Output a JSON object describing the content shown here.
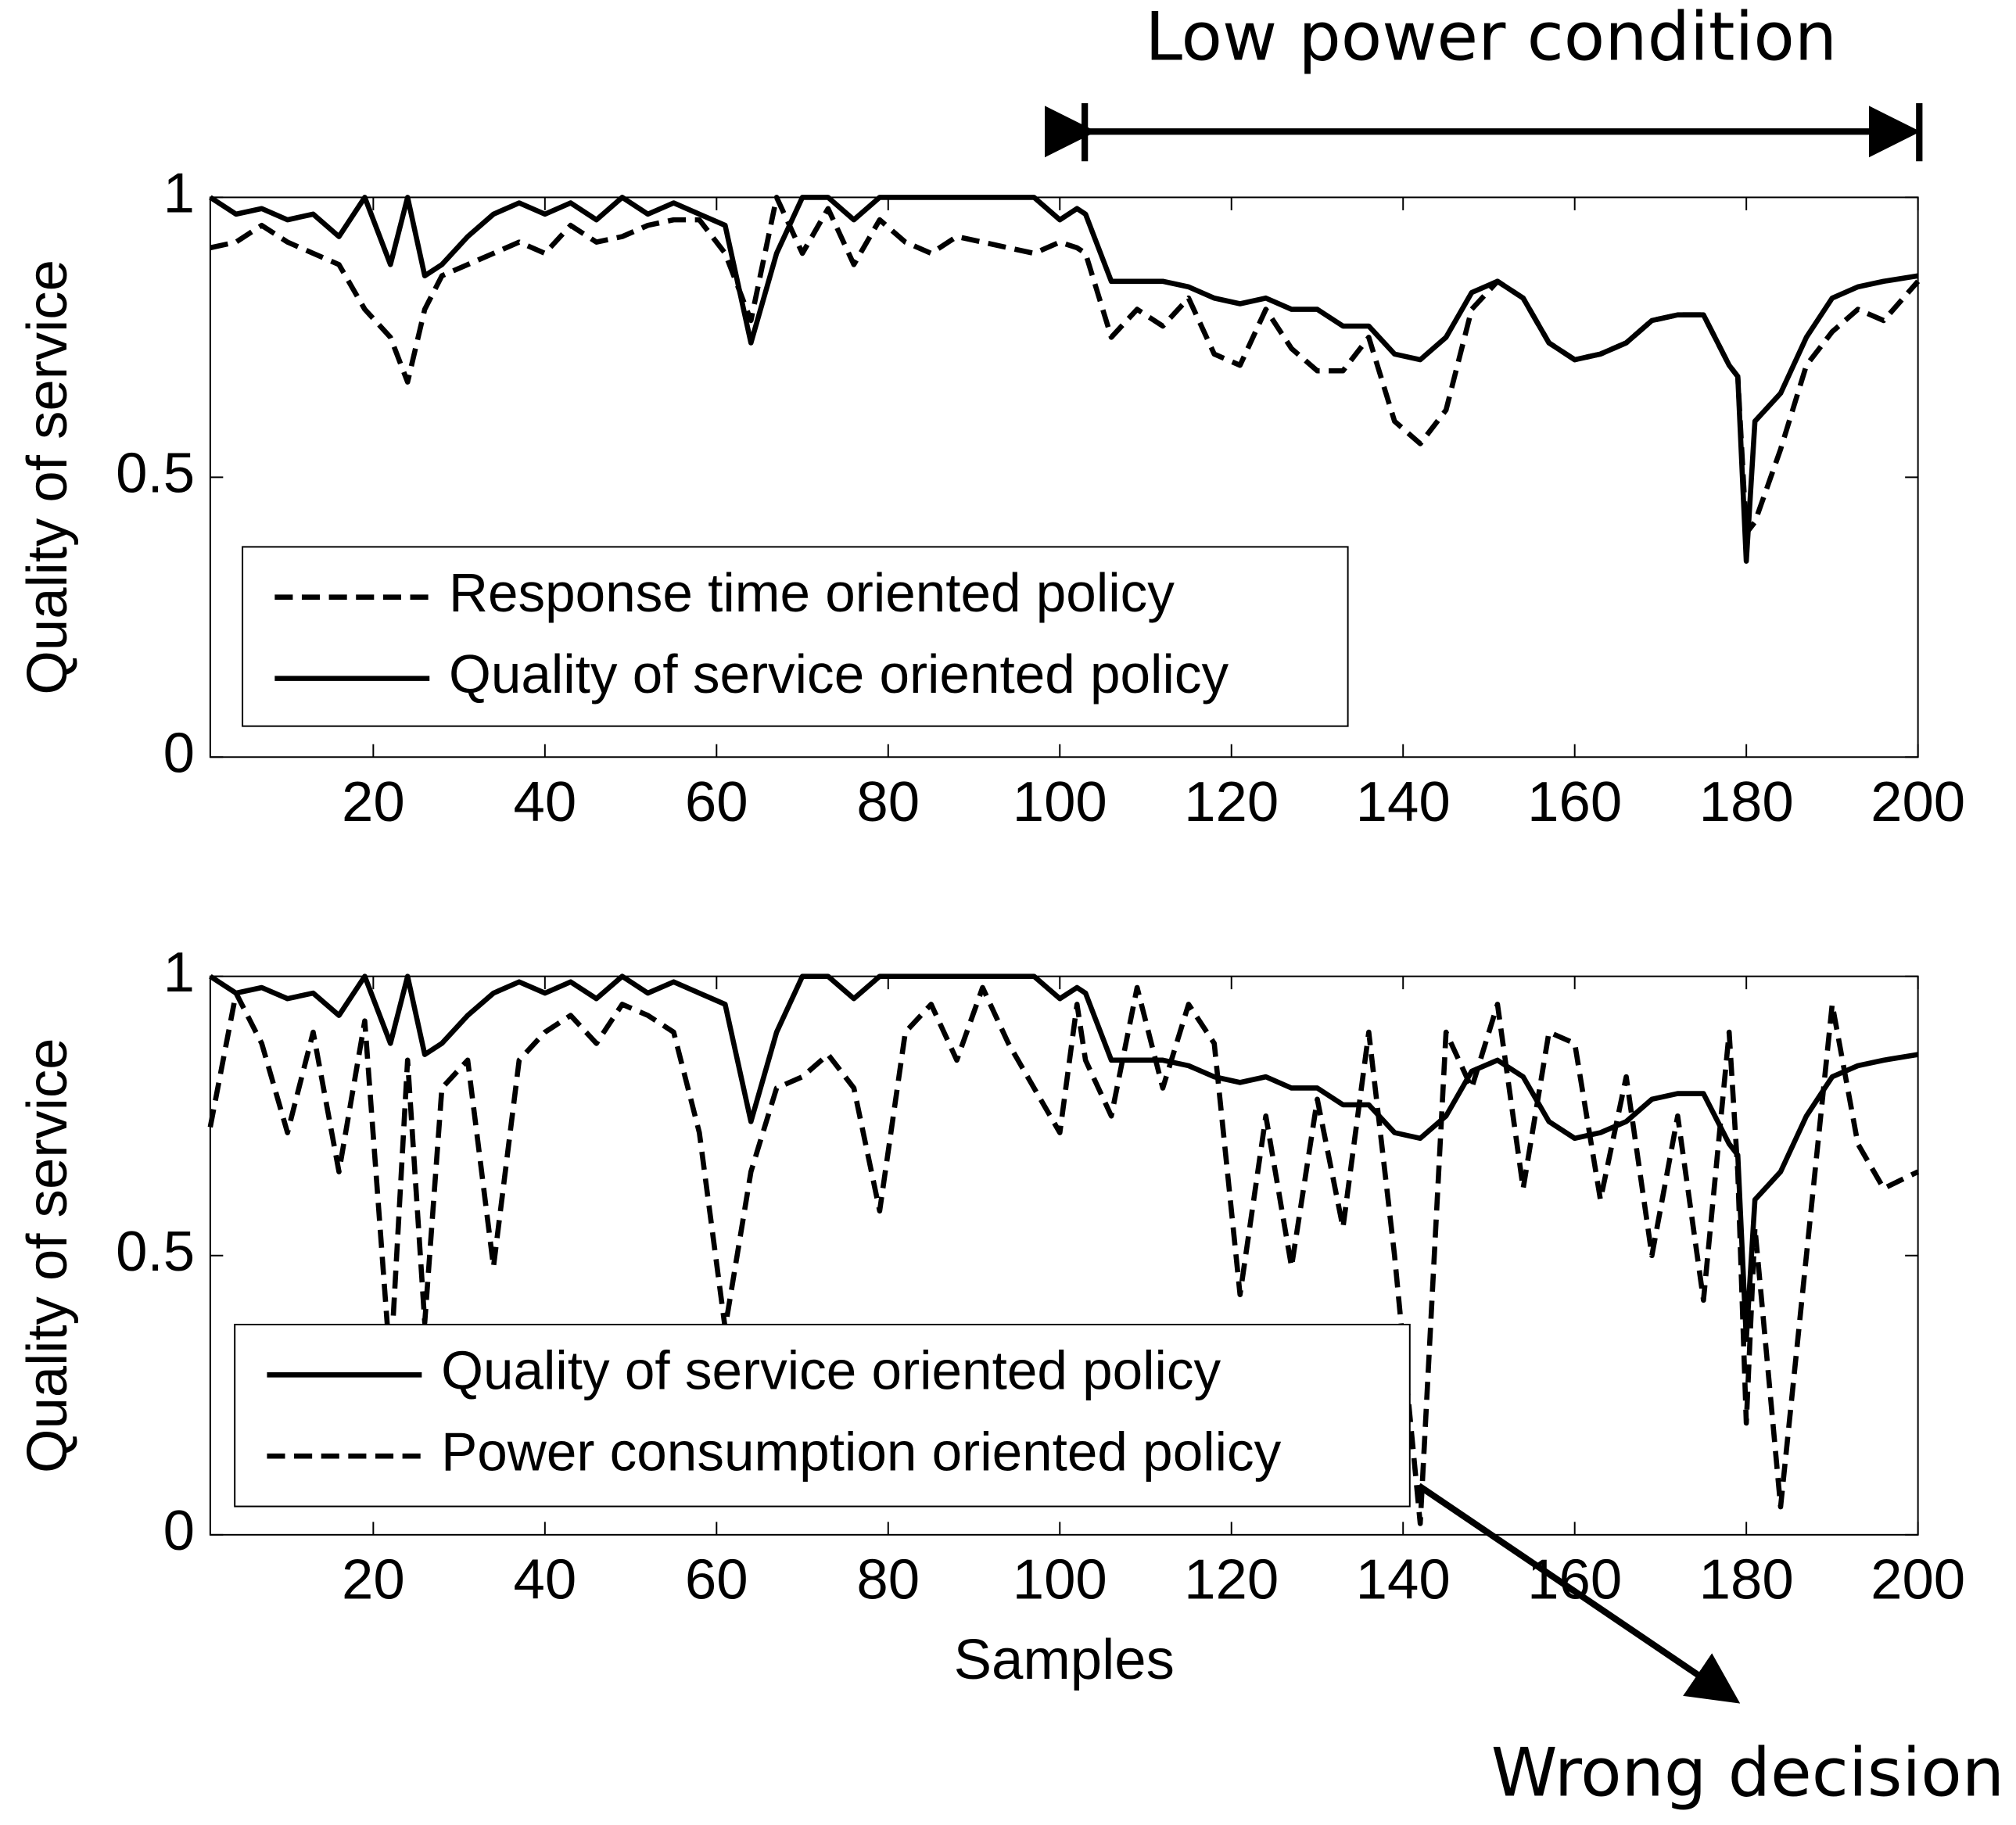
{
  "chart_data": [
    {
      "type": "line",
      "ylabel": "Quality of service",
      "annotation": "Low power condition",
      "x": [
        1,
        4,
        7,
        10,
        13,
        16,
        19,
        22,
        24,
        26,
        28,
        31,
        34,
        37,
        40,
        43,
        46,
        49,
        52,
        55,
        58,
        61,
        64,
        67,
        70,
        73,
        76,
        79,
        82,
        85,
        88,
        91,
        94,
        97,
        100,
        102,
        103,
        106,
        109,
        112,
        115,
        118,
        121,
        124,
        127,
        130,
        133,
        136,
        139,
        142,
        145,
        148,
        151,
        154,
        157,
        160,
        163,
        166,
        169,
        172,
        175,
        178,
        179,
        180,
        181,
        184,
        187,
        190,
        193,
        196,
        200
      ],
      "series": [
        {
          "name": "Response time oriented policy",
          "color": "#000000",
          "linestyle": "dashed",
          "values": [
            0.91,
            0.92,
            0.95,
            0.92,
            0.9,
            0.88,
            0.8,
            0.75,
            0.67,
            0.8,
            0.86,
            0.88,
            0.9,
            0.92,
            0.9,
            0.95,
            0.92,
            0.93,
            0.95,
            0.96,
            0.96,
            0.9,
            0.78,
            1.0,
            0.9,
            0.98,
            0.88,
            0.96,
            0.92,
            0.9,
            0.93,
            0.92,
            0.91,
            0.9,
            0.92,
            0.91,
            0.9,
            0.75,
            0.8,
            0.77,
            0.82,
            0.72,
            0.7,
            0.8,
            0.73,
            0.69,
            0.69,
            0.75,
            0.6,
            0.56,
            0.62,
            0.8,
            0.85,
            0.82,
            0.74,
            0.71,
            0.72,
            0.74,
            0.78,
            0.79,
            0.79,
            0.7,
            0.68,
            0.4,
            0.42,
            0.55,
            0.7,
            0.76,
            0.8,
            0.78,
            0.85
          ]
        },
        {
          "name": "Quality of service oriented policy",
          "color": "#000000",
          "linestyle": "solid",
          "values": [
            1.0,
            0.97,
            0.98,
            0.96,
            0.97,
            0.93,
            1.0,
            0.88,
            1.0,
            0.86,
            0.88,
            0.93,
            0.97,
            0.99,
            0.97,
            0.99,
            0.96,
            1.0,
            0.97,
            0.99,
            0.97,
            0.95,
            0.74,
            0.9,
            1.0,
            1.0,
            0.96,
            1.0,
            1.0,
            1.0,
            1.0,
            1.0,
            1.0,
            1.0,
            0.96,
            0.98,
            0.97,
            0.85,
            0.85,
            0.85,
            0.84,
            0.82,
            0.81,
            0.82,
            0.8,
            0.8,
            0.77,
            0.77,
            0.72,
            0.71,
            0.75,
            0.83,
            0.85,
            0.82,
            0.74,
            0.71,
            0.72,
            0.74,
            0.78,
            0.79,
            0.79,
            0.7,
            0.68,
            0.35,
            0.6,
            0.65,
            0.75,
            0.82,
            0.84,
            0.85,
            0.86
          ]
        }
      ],
      "xlim": [
        1,
        200
      ],
      "xticks": [
        20,
        40,
        60,
        80,
        100,
        120,
        140,
        160,
        180,
        200
      ],
      "ylim": [
        0,
        1
      ],
      "yticks": [
        0,
        0.5,
        1
      ]
    },
    {
      "type": "line",
      "ylabel": "Quality of service",
      "xlabel": "Samples",
      "annotation": "Wrong decision",
      "x": [
        1,
        4,
        7,
        10,
        13,
        16,
        19,
        22,
        24,
        26,
        28,
        31,
        34,
        37,
        40,
        43,
        46,
        49,
        52,
        55,
        58,
        61,
        64,
        67,
        70,
        73,
        76,
        79,
        82,
        85,
        88,
        91,
        94,
        97,
        100,
        102,
        103,
        106,
        109,
        112,
        115,
        118,
        121,
        124,
        127,
        130,
        133,
        136,
        139,
        142,
        145,
        148,
        151,
        154,
        157,
        160,
        163,
        166,
        169,
        172,
        175,
        178,
        179,
        180,
        181,
        184,
        187,
        190,
        193,
        196,
        200
      ],
      "series": [
        {
          "name": "Quality of service oriented policy",
          "color": "#000000",
          "linestyle": "solid",
          "values": [
            1.0,
            0.97,
            0.98,
            0.96,
            0.97,
            0.93,
            1.0,
            0.88,
            1.0,
            0.86,
            0.88,
            0.93,
            0.97,
            0.99,
            0.97,
            0.99,
            0.96,
            1.0,
            0.97,
            0.99,
            0.97,
            0.95,
            0.74,
            0.9,
            1.0,
            1.0,
            0.96,
            1.0,
            1.0,
            1.0,
            1.0,
            1.0,
            1.0,
            1.0,
            0.96,
            0.98,
            0.97,
            0.85,
            0.85,
            0.85,
            0.84,
            0.82,
            0.81,
            0.82,
            0.8,
            0.8,
            0.77,
            0.77,
            0.72,
            0.71,
            0.75,
            0.83,
            0.85,
            0.82,
            0.74,
            0.71,
            0.72,
            0.74,
            0.78,
            0.79,
            0.79,
            0.7,
            0.68,
            0.35,
            0.6,
            0.65,
            0.75,
            0.82,
            0.84,
            0.85,
            0.86
          ]
        },
        {
          "name": "Power consumption oriented policy",
          "color": "#000000",
          "linestyle": "dashed",
          "values": [
            0.73,
            0.97,
            0.88,
            0.72,
            0.9,
            0.65,
            0.92,
            0.3,
            0.85,
            0.38,
            0.8,
            0.85,
            0.48,
            0.85,
            0.9,
            0.93,
            0.88,
            0.95,
            0.93,
            0.9,
            0.72,
            0.37,
            0.65,
            0.8,
            0.82,
            0.86,
            0.8,
            0.58,
            0.9,
            0.95,
            0.85,
            0.98,
            0.88,
            0.8,
            0.72,
            0.95,
            0.85,
            0.75,
            0.98,
            0.8,
            0.95,
            0.88,
            0.43,
            0.75,
            0.48,
            0.78,
            0.55,
            0.9,
            0.5,
            0.02,
            0.9,
            0.8,
            0.95,
            0.62,
            0.9,
            0.88,
            0.6,
            0.82,
            0.5,
            0.75,
            0.42,
            0.9,
            0.65,
            0.2,
            0.55,
            0.05,
            0.5,
            0.95,
            0.7,
            0.62,
            0.65
          ]
        }
      ],
      "xlim": [
        1,
        200
      ],
      "xticks": [
        20,
        40,
        60,
        80,
        100,
        120,
        140,
        160,
        180,
        200
      ],
      "ylim": [
        0,
        1
      ],
      "yticks": [
        0,
        0.5,
        1
      ]
    }
  ]
}
